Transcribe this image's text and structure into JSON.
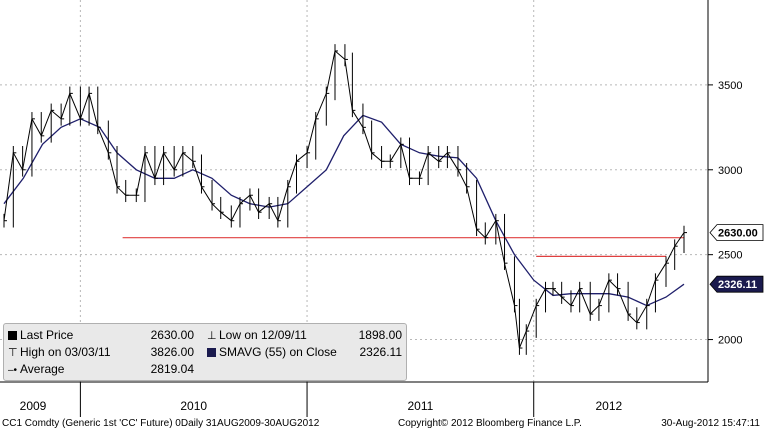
{
  "chart_data": {
    "type": "line",
    "x_axis": {
      "years": [
        "2009",
        "2010",
        "2011",
        "2012"
      ],
      "range": [
        "2009-08-31",
        "2012-08-30"
      ]
    },
    "y_axis": {
      "ticks": [
        "2000",
        "2500",
        "3000",
        "3500"
      ],
      "range": [
        1750,
        4000
      ],
      "position": "right"
    },
    "grid": true,
    "series": [
      {
        "name": "Last Price",
        "style": "bars",
        "color": "#000000",
        "points": [
          [
            "2009-08-31",
            2700
          ],
          [
            "2009-09-15",
            3100
          ],
          [
            "2009-09-30",
            3000
          ],
          [
            "2009-10-15",
            3300
          ],
          [
            "2009-10-30",
            3200
          ],
          [
            "2009-11-15",
            3350
          ],
          [
            "2009-12-01",
            3300
          ],
          [
            "2009-12-15",
            3450
          ],
          [
            "2010-01-01",
            3300
          ],
          [
            "2010-01-15",
            3450
          ],
          [
            "2010-01-29",
            3250
          ],
          [
            "2010-02-15",
            3100
          ],
          [
            "2010-03-01",
            2900
          ],
          [
            "2010-03-15",
            2850
          ],
          [
            "2010-04-01",
            2850
          ],
          [
            "2010-04-15",
            3100
          ],
          [
            "2010-05-01",
            2950
          ],
          [
            "2010-05-15",
            3100
          ],
          [
            "2010-06-01",
            3000
          ],
          [
            "2010-06-15",
            3100
          ],
          [
            "2010-07-01",
            3050
          ],
          [
            "2010-07-15",
            2900
          ],
          [
            "2010-08-01",
            2800
          ],
          [
            "2010-08-15",
            2750
          ],
          [
            "2010-09-01",
            2700
          ],
          [
            "2010-09-15",
            2800
          ],
          [
            "2010-10-01",
            2850
          ],
          [
            "2010-10-15",
            2750
          ],
          [
            "2010-11-01",
            2800
          ],
          [
            "2010-11-15",
            2700
          ],
          [
            "2010-12-01",
            2900
          ],
          [
            "2010-12-15",
            3050
          ],
          [
            "2011-01-01",
            3100
          ],
          [
            "2011-01-15",
            3300
          ],
          [
            "2011-02-01",
            3450
          ],
          [
            "2011-02-15",
            3700
          ],
          [
            "2011-03-03",
            3650
          ],
          [
            "2011-03-15",
            3350
          ],
          [
            "2011-04-01",
            3250
          ],
          [
            "2011-04-15",
            3100
          ],
          [
            "2011-05-01",
            3050
          ],
          [
            "2011-05-15",
            3050
          ],
          [
            "2011-06-01",
            3150
          ],
          [
            "2011-06-15",
            2950
          ],
          [
            "2011-07-01",
            2950
          ],
          [
            "2011-07-15",
            3100
          ],
          [
            "2011-08-01",
            3050
          ],
          [
            "2011-08-15",
            3100
          ],
          [
            "2011-09-01",
            3000
          ],
          [
            "2011-09-15",
            2900
          ],
          [
            "2011-10-01",
            2650
          ],
          [
            "2011-10-15",
            2600
          ],
          [
            "2011-11-01",
            2700
          ],
          [
            "2011-11-15",
            2450
          ],
          [
            "2011-12-01",
            2200
          ],
          [
            "2011-12-09",
            1950
          ],
          [
            "2011-12-20",
            2050
          ],
          [
            "2012-01-05",
            2200
          ],
          [
            "2012-01-20",
            2300
          ],
          [
            "2012-02-01",
            2300
          ],
          [
            "2012-02-15",
            2250
          ],
          [
            "2012-03-01",
            2200
          ],
          [
            "2012-03-15",
            2300
          ],
          [
            "2012-04-01",
            2150
          ],
          [
            "2012-04-15",
            2200
          ],
          [
            "2012-05-01",
            2350
          ],
          [
            "2012-05-15",
            2300
          ],
          [
            "2012-06-01",
            2150
          ],
          [
            "2012-06-15",
            2100
          ],
          [
            "2012-07-01",
            2200
          ],
          [
            "2012-07-15",
            2350
          ],
          [
            "2012-08-01",
            2450
          ],
          [
            "2012-08-15",
            2550
          ],
          [
            "2012-08-30",
            2630
          ]
        ]
      },
      {
        "name": "SMAVG (55) on Close",
        "style": "line",
        "color": "#1f1f6b",
        "points": [
          [
            "2009-08-31",
            2800
          ],
          [
            "2009-10-01",
            2950
          ],
          [
            "2009-11-01",
            3150
          ],
          [
            "2009-12-01",
            3250
          ],
          [
            "2010-01-01",
            3300
          ],
          [
            "2010-02-01",
            3250
          ],
          [
            "2010-03-01",
            3100
          ],
          [
            "2010-04-01",
            3000
          ],
          [
            "2010-05-01",
            2950
          ],
          [
            "2010-06-01",
            2950
          ],
          [
            "2010-07-01",
            3000
          ],
          [
            "2010-08-01",
            2950
          ],
          [
            "2010-09-01",
            2850
          ],
          [
            "2010-10-01",
            2800
          ],
          [
            "2010-11-01",
            2780
          ],
          [
            "2010-12-01",
            2800
          ],
          [
            "2011-01-01",
            2900
          ],
          [
            "2011-02-01",
            3000
          ],
          [
            "2011-03-01",
            3200
          ],
          [
            "2011-04-01",
            3320
          ],
          [
            "2011-05-01",
            3280
          ],
          [
            "2011-06-01",
            3150
          ],
          [
            "2011-07-01",
            3100
          ],
          [
            "2011-08-01",
            3080
          ],
          [
            "2011-09-01",
            3070
          ],
          [
            "2011-10-01",
            2950
          ],
          [
            "2011-11-01",
            2700
          ],
          [
            "2011-12-01",
            2500
          ],
          [
            "2012-01-01",
            2350
          ],
          [
            "2012-02-01",
            2260
          ],
          [
            "2012-03-01",
            2270
          ],
          [
            "2012-04-01",
            2270
          ],
          [
            "2012-05-01",
            2270
          ],
          [
            "2012-06-01",
            2250
          ],
          [
            "2012-07-01",
            2200
          ],
          [
            "2012-08-01",
            2250
          ],
          [
            "2012-08-30",
            2326
          ]
        ]
      }
    ],
    "reference_lines": [
      {
        "start": "2010-03-10",
        "end": "2012-08-30",
        "value": 2600,
        "color": "#e04040"
      },
      {
        "start": "2012-01-05",
        "end": "2012-08-01",
        "value": 2490,
        "color": "#e04040"
      }
    ],
    "value_tags": [
      {
        "label": "2630.00",
        "value": 2630,
        "bg": "#ffffff",
        "fg": "#000000"
      },
      {
        "label": "2326.11",
        "value": 2326,
        "bg": "#1a1a4e",
        "fg": "#ffffff"
      }
    ],
    "legend": {
      "placement": "bottom-left",
      "rows": [
        {
          "left_label": "Last Price",
          "left_value": "2630.00",
          "right_label": "Low on 12/09/11",
          "right_value": "1898.00"
        },
        {
          "left_label": "High on 03/03/11",
          "left_value": "3826.00",
          "right_label": "SMAVG (55) on Close",
          "right_value": "2326.11"
        },
        {
          "left_label": "Average",
          "left_value": "2819.04",
          "right_label": "",
          "right_value": ""
        }
      ]
    }
  },
  "footer": {
    "security": "CC1 Comdty (Generic 1st 'CC' Future) 0Daily 31AUG2009-30AUG2012",
    "copyright": "Copyright© 2012 Bloomberg Finance L.P.",
    "timestamp": "30-Aug-2012 15:47:11"
  }
}
